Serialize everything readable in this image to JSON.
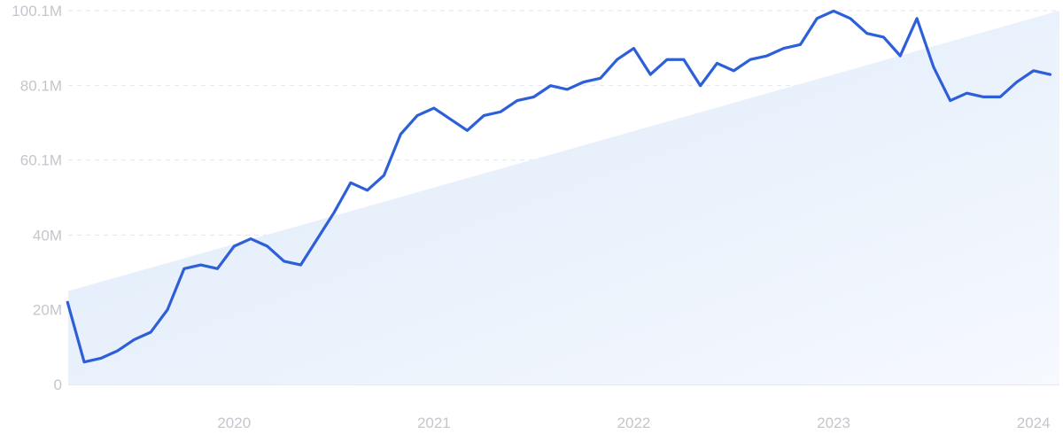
{
  "chart_data": {
    "type": "line",
    "title": "",
    "xlabel": "",
    "ylabel": "",
    "ylim": [
      0,
      100.1
    ],
    "grid": true,
    "legend": "none",
    "y_ticks": [
      {
        "value": 0,
        "label": "0"
      },
      {
        "value": 20,
        "label": "20M"
      },
      {
        "value": 40,
        "label": "40M"
      },
      {
        "value": 60.1,
        "label": "60.1M"
      },
      {
        "value": 80.1,
        "label": "80.1M"
      },
      {
        "value": 100.1,
        "label": "100.1M"
      }
    ],
    "x_ticks": [
      {
        "value": 2020.0,
        "label": "2020"
      },
      {
        "value": 2021.0,
        "label": "2021"
      },
      {
        "value": 2022.0,
        "label": "2022"
      },
      {
        "value": 2023.0,
        "label": "2023"
      },
      {
        "value": 2024.0,
        "label": "2024"
      }
    ],
    "xlim": [
      2019.67,
      2024.63
    ],
    "trend": {
      "start": 25,
      "end": 100.1
    },
    "colors": {
      "line": "#2d5fd9",
      "trend_fill_start": "#dce9f9",
      "trend_fill_end": "#f6f9fe",
      "grid": "#dfe6ee",
      "tick_text": "#c3c6cc"
    },
    "series": [
      {
        "x": [
          "2019-09",
          "2019-10",
          "2019-11",
          "2019-12",
          "2020-01",
          "2020-02",
          "2020-03",
          "2020-04",
          "2020-05",
          "2020-06",
          "2020-07",
          "2020-08",
          "2020-09",
          "2020-10",
          "2020-11",
          "2020-12",
          "2021-01",
          "2021-02",
          "2021-03",
          "2021-04",
          "2021-05",
          "2021-06",
          "2021-07",
          "2021-08",
          "2021-09",
          "2021-10",
          "2021-11",
          "2021-12",
          "2022-01",
          "2022-02",
          "2022-03",
          "2022-04",
          "2022-05",
          "2022-06",
          "2022-07",
          "2022-08",
          "2022-09",
          "2022-10",
          "2022-11",
          "2022-12",
          "2023-01",
          "2023-02",
          "2023-03",
          "2023-04",
          "2023-05",
          "2023-06",
          "2023-07",
          "2023-08",
          "2023-09",
          "2023-10",
          "2023-11",
          "2023-12",
          "2024-01",
          "2024-02",
          "2024-03",
          "2024-04",
          "2024-05",
          "2024-06",
          "2024-07",
          "2024-08"
        ],
        "values": [
          22,
          6,
          7,
          9,
          12,
          14,
          20,
          31,
          32,
          31,
          37,
          39,
          37,
          33,
          32,
          39,
          46,
          54,
          52,
          56,
          67,
          72,
          74,
          71,
          68,
          72,
          73,
          76,
          77,
          80,
          79,
          81,
          82,
          87,
          90,
          83,
          87,
          87,
          80,
          86,
          84,
          87,
          88,
          90,
          91,
          98,
          100,
          98,
          94,
          93,
          88,
          98,
          85,
          76,
          78,
          77,
          77,
          81,
          84,
          83
        ]
      }
    ]
  }
}
